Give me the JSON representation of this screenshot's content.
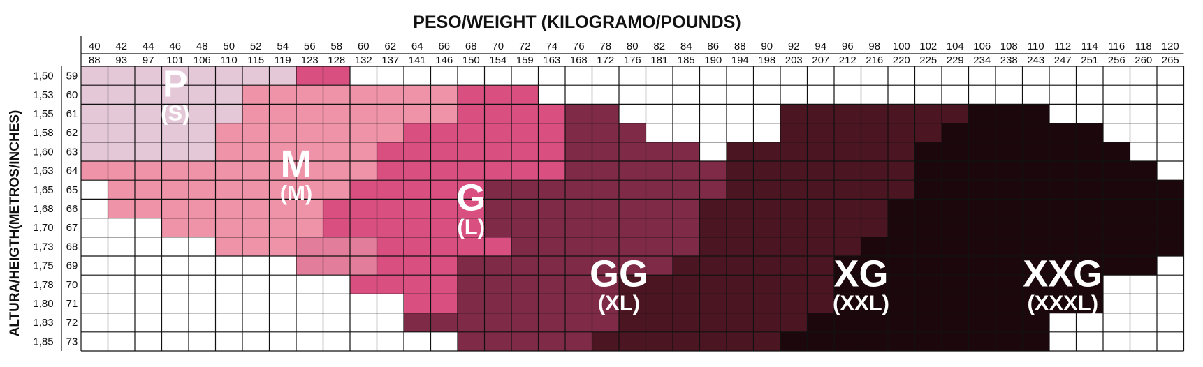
{
  "chart_data": {
    "type": "heatmap",
    "title": "PESO/WEIGHT (KILOGRAMO/POUNDS)",
    "ylabel": "ALTURA/HEIGTH(METROS/INCHES)",
    "x_kg": [
      "40",
      "42",
      "44",
      "46",
      "48",
      "50",
      "52",
      "54",
      "56",
      "58",
      "60",
      "62",
      "64",
      "66",
      "68",
      "70",
      "72",
      "74",
      "76",
      "78",
      "80",
      "82",
      "84",
      "86",
      "88",
      "90",
      "92",
      "94",
      "96",
      "98",
      "100",
      "102",
      "104",
      "106",
      "108",
      "110",
      "112",
      "114",
      "116",
      "118",
      "120"
    ],
    "x_lb": [
      "88",
      "93",
      "97",
      "101",
      "106",
      "110",
      "115",
      "119",
      "123",
      "128",
      "132",
      "137",
      "141",
      "146",
      "150",
      "154",
      "159",
      "163",
      "168",
      "172",
      "176",
      "181",
      "185",
      "190",
      "194",
      "198",
      "203",
      "207",
      "212",
      "216",
      "220",
      "225",
      "229",
      "234",
      "238",
      "243",
      "247",
      "251",
      "256",
      "260",
      "265"
    ],
    "y_m": [
      "1,50",
      "1,53",
      "1,55",
      "1,58",
      "1,60",
      "1,63",
      "1,65",
      "1,68",
      "1,70",
      "1,73",
      "1,75",
      "1,78",
      "1,80",
      "1,83",
      "1,85"
    ],
    "y_in": [
      "59",
      "60",
      "61",
      "62",
      "63",
      "64",
      "65",
      "66",
      "67",
      "68",
      "69",
      "70",
      "71",
      "72",
      "73"
    ],
    "zones": [
      {
        "code": "P",
        "main": "P",
        "sub": "(S)",
        "color": "#e4c8d8",
        "anchor_kg": 46,
        "anchor_row": 1.6
      },
      {
        "code": "M",
        "main": "M",
        "sub": "(M)",
        "color": "#ef94a8",
        "anchor_kg": 55,
        "anchor_row": 5.8
      },
      {
        "code": "M2",
        "main": "",
        "sub": "",
        "color": "#e27e9b",
        "anchor_kg": 0,
        "anchor_row": 0
      },
      {
        "code": "G",
        "main": "G",
        "sub": "(L)",
        "color": "#d84f80",
        "anchor_kg": 68,
        "anchor_row": 7.6
      },
      {
        "code": "GG",
        "main": "GG",
        "sub": "(XL)",
        "color": "#7f2b47",
        "anchor_kg": 79,
        "anchor_row": 11.6
      },
      {
        "code": "XG",
        "main": "XG",
        "sub": "(XXL)",
        "color": "#4b1622",
        "anchor_kg": 97,
        "anchor_row": 11.6
      },
      {
        "code": "XXG",
        "main": "XXG",
        "sub": "(XXXL)",
        "color": "#1c080c",
        "anchor_kg": 112,
        "anchor_row": 11.6
      }
    ],
    "grid": [
      "PPPPPPPPGGWWWWWWWWWWWWWWWWWWWWWWWWWWWWWWW",
      "PPPPPPMMMMMMMMGGGWWWWWWWWWWWWWWWWWWWWWWWW",
      "PPPPPPMMMMMMMMGGGGYYWWWWWWXXXXXXXZZZWWWWW",
      "PPPPPMMMMMMMGGGGGGYYYWWWWWXXXXXXZZZZZZWWW",
      "PPPPPMMMMMMGGGGGGGYYYYYWXXXXXXXZZZZZZZZWW",
      "MMMMMMMMMMMGGGGGGGYYYYYYXXXXXXXZZZZZZZZZW",
      "WMMMMMMMMMGGGGGYYYYYYYYYXXXXXXXZZZZZZZZZZ",
      "WMMMMMMMMGGGGGGYYYYYYYYXXXXXXXZZZZZZZZZZZ",
      "WWWMMMMMMGGGGGGYYYYYYYYXXXXXXXZZZZZZZZZZZ",
      "WWWWWMMMQQQGGGGGYYYYYYYXXXXXXZZZZZZZZZZZZ",
      "WWWWWWWWQQQGGGYYYYYYYYXXXXXXZZZZZZZZZZZZW",
      "WWWWWWWWWWGGGGYYYYYYXXXXXXXXZZZZZZZZZZWWW",
      "WWWWWWWWWWWWGGYYYYYYXXXXXXXXZZZZZZZZZZWWW",
      "WWWWWWWWWWWWYYYYYYYYXXXXXXXZZZZZZZZZWWWWW",
      "WWWWWWWWWWWWWWYYYYYXXXXXXXZZZZZZZZZZWWWWW"
    ],
    "legend_map": {
      "P": "P",
      "M": "M",
      "Q": "M2",
      "G": "G",
      "Y": "GG",
      "X": "XG",
      "Z": "XXG",
      "W": "none"
    },
    "empty_color": "#ffffff",
    "grid_lines": true
  }
}
